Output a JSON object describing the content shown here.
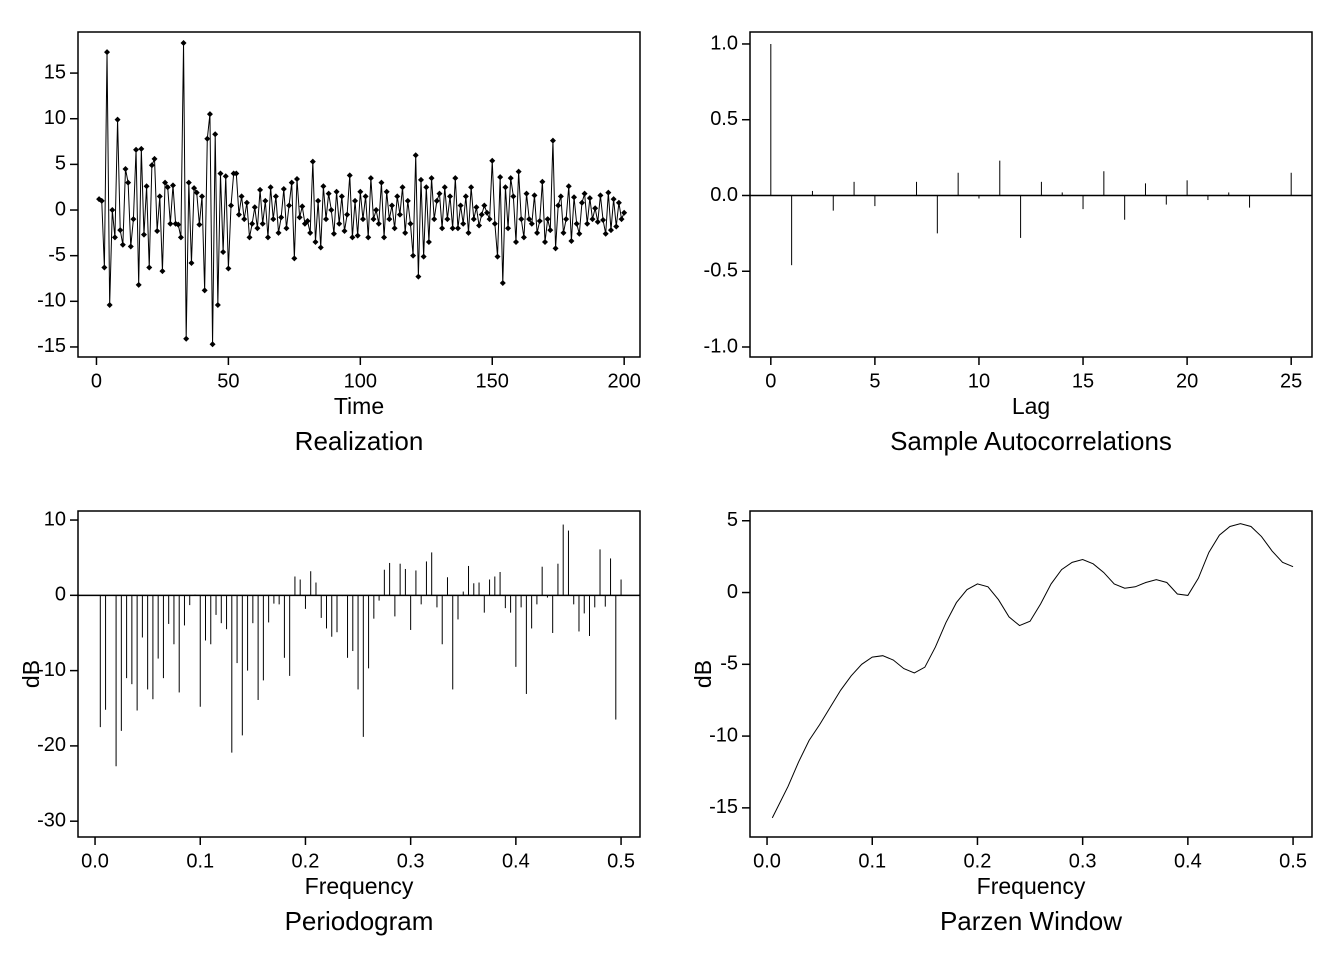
{
  "chart_data": [
    {
      "type": "line",
      "markers": true,
      "title": "Realization",
      "xlabel": "Time",
      "color": "#000000",
      "x": [
        1,
        2,
        3,
        4,
        5,
        6,
        7,
        8,
        9,
        10,
        11,
        12,
        13,
        14,
        15,
        16,
        17,
        18,
        19,
        20,
        21,
        22,
        23,
        24,
        25,
        26,
        27,
        28,
        29,
        30,
        31,
        32,
        33,
        34,
        35,
        36,
        37,
        38,
        39,
        40,
        41,
        42,
        43,
        44,
        45,
        46,
        47,
        48,
        49,
        50,
        51,
        52,
        53,
        54,
        55,
        56,
        57,
        58,
        59,
        60,
        61,
        62,
        63,
        64,
        65,
        66,
        67,
        68,
        69,
        70,
        71,
        72,
        73,
        74,
        75,
        76,
        77,
        78,
        79,
        80,
        81,
        82,
        83,
        84,
        85,
        86,
        87,
        88,
        89,
        90,
        91,
        92,
        93,
        94,
        95,
        96,
        97,
        98,
        99,
        100,
        101,
        102,
        103,
        104,
        105,
        106,
        107,
        108,
        109,
        110,
        111,
        112,
        113,
        114,
        115,
        116,
        117,
        118,
        119,
        120,
        121,
        122,
        123,
        124,
        125,
        126,
        127,
        128,
        129,
        130,
        131,
        132,
        133,
        134,
        135,
        136,
        137,
        138,
        139,
        140,
        141,
        142,
        143,
        144,
        145,
        146,
        147,
        148,
        149,
        150,
        151,
        152,
        153,
        154,
        155,
        156,
        157,
        158,
        159,
        160,
        161,
        162,
        163,
        164,
        165,
        166,
        167,
        168,
        169,
        170,
        171,
        172,
        173,
        174,
        175,
        176,
        177,
        178,
        179,
        180,
        181,
        182,
        183,
        184,
        185,
        186,
        187,
        188,
        189,
        190,
        191,
        192,
        193,
        194,
        195,
        196,
        197,
        198,
        199,
        200
      ],
      "values": [
        1.2,
        1,
        -6.3,
        17.3,
        -10.4,
        0,
        -3,
        9.9,
        -2.2,
        -3.8,
        4.5,
        3,
        -4,
        -1,
        6.6,
        -8.2,
        6.7,
        -2.7,
        2.6,
        -6.3,
        4.9,
        5.6,
        -2.3,
        1.5,
        -6.7,
        3,
        2.5,
        -1.5,
        2.7,
        -1.5,
        -1.6,
        -3,
        18.3,
        -14.1,
        3,
        -5.8,
        2.4,
        1.9,
        -1.6,
        1.5,
        -8.8,
        7.8,
        10.5,
        -14.7,
        8.3,
        -10.4,
        4,
        -4.6,
        3.7,
        -6.4,
        0.5,
        4,
        4,
        -0.5,
        1.5,
        -1,
        0.8,
        -3,
        -1.5,
        0.3,
        -2,
        2.2,
        -1.5,
        1,
        -3,
        2.5,
        -1,
        1.5,
        -2.5,
        -0.8,
        2.3,
        -2,
        0.5,
        3,
        -5.3,
        3.4,
        -0.8,
        0.4,
        -1.5,
        -1.2,
        -2.5,
        5.3,
        -3.5,
        1,
        -4.1,
        2.6,
        -1,
        1.8,
        0,
        -2.6,
        2,
        -1.5,
        1.5,
        -2.3,
        -0.5,
        3.8,
        -3,
        1,
        -2.8,
        2,
        -1,
        1.5,
        -3,
        3.5,
        -1,
        0,
        -1.5,
        3,
        -3,
        2,
        -1,
        0.5,
        -2,
        1.5,
        -0.5,
        2.5,
        -2.5,
        1,
        -1.5,
        -5,
        6,
        -7.3,
        3.3,
        -5.1,
        2.5,
        -3.5,
        3.5,
        -1,
        1,
        1.8,
        -2,
        2.5,
        -1,
        1.5,
        -2,
        3.5,
        -2,
        0.5,
        -1.5,
        1.5,
        -2.5,
        2.5,
        -1,
        0.3,
        -1.7,
        -0.5,
        0.5,
        -0.3,
        -1,
        5.4,
        -1.5,
        -5.1,
        3.6,
        -8,
        2.5,
        -2,
        3.5,
        1.5,
        -3.5,
        4.2,
        -1,
        -3,
        1.8,
        -1,
        -1.5,
        1.6,
        -2.5,
        -1.2,
        3.1,
        -3.5,
        -1,
        -2.2,
        7.6,
        -4.2,
        0.5,
        1.5,
        -2.5,
        -1,
        2.6,
        -3.4,
        1.4,
        -1.5,
        -2.6,
        0.8,
        1.8,
        -1.5,
        1.3,
        -1,
        0.2,
        -1.3,
        1.6,
        -1.1,
        -2.6,
        1.9,
        -2.2,
        1.2,
        -1.8,
        0.8,
        -1,
        -0.3
      ],
      "xlim": [
        -7,
        206
      ],
      "ylim": [
        -16.1,
        19.5
      ],
      "xticks": [
        0,
        50,
        100,
        150,
        200
      ],
      "yticks": [
        -15,
        -10,
        -5,
        0,
        5,
        10,
        15
      ]
    },
    {
      "type": "stem",
      "title": "Sample Autocorrelations",
      "xlabel": "Lag",
      "color": "#000000",
      "x": [
        0,
        1,
        2,
        3,
        4,
        5,
        6,
        7,
        8,
        9,
        10,
        11,
        12,
        13,
        14,
        15,
        16,
        17,
        18,
        19,
        20,
        21,
        22,
        23,
        24,
        25
      ],
      "values": [
        1,
        -0.46,
        0.03,
        -0.1,
        0.09,
        -0.07,
        0,
        0.09,
        -0.25,
        0.15,
        -0.02,
        0.23,
        -0.28,
        0.09,
        0.02,
        -0.09,
        0.16,
        -0.16,
        0.08,
        -0.06,
        0.1,
        -0.03,
        0.02,
        -0.08,
        0,
        0.15
      ],
      "xlim": [
        -1,
        26
      ],
      "ylim": [
        -1.066,
        1.079
      ],
      "xticks": [
        0,
        5,
        10,
        15,
        20,
        25
      ],
      "yticks": [
        {
          "value": -1,
          "label": "-1.0"
        },
        {
          "value": -0.5,
          "label": "-0.5"
        },
        {
          "value": 0,
          "label": "0.0"
        },
        {
          "value": 0.5,
          "label": "0.5"
        },
        {
          "value": 1,
          "label": "1.0"
        }
      ]
    },
    {
      "type": "stem",
      "title": "Periodogram",
      "xlabel": "Frequency",
      "ylabel": "dB",
      "color": "#000000",
      "x": [
        0.005,
        0.01,
        0.02,
        0.025,
        0.03,
        0.035,
        0.04,
        0.045,
        0.05,
        0.055,
        0.06,
        0.065,
        0.07,
        0.075,
        0.08,
        0.085,
        0.09,
        0.095,
        0.1,
        0.105,
        0.11,
        0.115,
        0.12,
        0.125,
        0.13,
        0.135,
        0.14,
        0.145,
        0.15,
        0.155,
        0.16,
        0.165,
        0.17,
        0.175,
        0.18,
        0.185,
        0.19,
        0.195,
        0.2,
        0.205,
        0.21,
        0.215,
        0.22,
        0.225,
        0.23,
        0.235,
        0.24,
        0.245,
        0.25,
        0.255,
        0.26,
        0.265,
        0.27,
        0.275,
        0.28,
        0.285,
        0.29,
        0.295,
        0.3,
        0.305,
        0.31,
        0.315,
        0.32,
        0.325,
        0.33,
        0.335,
        0.34,
        0.345,
        0.35,
        0.355,
        0.36,
        0.365,
        0.37,
        0.375,
        0.38,
        0.385,
        0.39,
        0.395,
        0.4,
        0.405,
        0.41,
        0.415,
        0.42,
        0.425,
        0.43,
        0.435,
        0.44,
        0.445,
        0.45,
        0.455,
        0.46,
        0.465,
        0.47,
        0.475,
        0.48,
        0.485,
        0.49,
        0.495,
        0.5
      ],
      "values": [
        -17.5,
        -15.2,
        -22.7,
        -18,
        -11,
        -11.8,
        -15.3,
        -5.6,
        -12.5,
        -13.8,
        -8.4,
        -11,
        -3.8,
        -6.5,
        -12.9,
        -4,
        -1.3,
        0.1,
        -14.8,
        -6,
        -6.5,
        -2.6,
        -3.7,
        -4.5,
        -20.9,
        -9,
        -18.6,
        -10,
        -3.7,
        -13.9,
        -11.3,
        -3.6,
        -1.1,
        -1.2,
        -8.3,
        -10.7,
        2.5,
        2.1,
        -1.8,
        3.2,
        1.7,
        -3,
        -4.4,
        -5.5,
        -4.9,
        -0.1,
        -8.3,
        -7.4,
        -12.5,
        -18.8,
        -9.7,
        -3.1,
        -0.7,
        3.4,
        4.3,
        -2.8,
        4.2,
        3.5,
        -4.6,
        3.3,
        -1.2,
        4.5,
        5.7,
        -1.6,
        -6.5,
        2.4,
        -12.5,
        -3.2,
        0.5,
        3.9,
        1.6,
        1.7,
        -2.3,
        2.1,
        2.5,
        3.1,
        -1.7,
        -2.3,
        -9.5,
        -1.6,
        -13.1,
        -4.4,
        -1.2,
        3.8,
        -0.3,
        -5,
        4.2,
        9.4,
        8.6,
        -1.2,
        -4.8,
        -2.4,
        -5.4,
        -1.6,
        6.1,
        -1.5,
        4.9,
        -16.5,
        2.1
      ],
      "xlim": [
        -0.0162,
        0.518
      ],
      "ylim": [
        -32.1,
        11.2
      ],
      "xticks": [
        {
          "value": 0,
          "label": "0.0"
        },
        0.1,
        0.2,
        0.3,
        0.4,
        0.5
      ],
      "yticks": [
        -30,
        -20,
        -10,
        0,
        10
      ]
    },
    {
      "type": "line",
      "title": "Parzen Window",
      "xlabel": "Frequency",
      "ylabel": "dB",
      "color": "#000000",
      "x": [
        0.005,
        0.02,
        0.03,
        0.04,
        0.05,
        0.06,
        0.07,
        0.08,
        0.09,
        0.1,
        0.11,
        0.12,
        0.13,
        0.14,
        0.15,
        0.16,
        0.17,
        0.18,
        0.19,
        0.2,
        0.21,
        0.22,
        0.23,
        0.24,
        0.25,
        0.26,
        0.27,
        0.28,
        0.29,
        0.3,
        0.31,
        0.32,
        0.33,
        0.34,
        0.35,
        0.36,
        0.37,
        0.38,
        0.39,
        0.4,
        0.41,
        0.42,
        0.43,
        0.44,
        0.45,
        0.46,
        0.47,
        0.48,
        0.49,
        0.5
      ],
      "values": [
        -15.7,
        -13.5,
        -11.8,
        -10.3,
        -9.2,
        -8,
        -6.8,
        -5.8,
        -5,
        -4.5,
        -4.4,
        -4.7,
        -5.3,
        -5.6,
        -5.2,
        -3.8,
        -2.1,
        -0.7,
        0.2,
        0.6,
        0.4,
        -0.5,
        -1.7,
        -2.3,
        -2,
        -0.8,
        0.6,
        1.6,
        2.1,
        2.3,
        2,
        1.4,
        0.6,
        0.3,
        0.4,
        0.7,
        0.9,
        0.7,
        -0.1,
        -0.2,
        1,
        2.8,
        4,
        4.6,
        4.8,
        4.6,
        3.9,
        2.9,
        2.1,
        1.8
      ],
      "xlim": [
        -0.0162,
        0.518
      ],
      "ylim": [
        -17.03,
        5.68
      ],
      "xticks": [
        {
          "value": 0,
          "label": "0.0"
        },
        0.1,
        0.2,
        0.3,
        0.4,
        0.5
      ],
      "yticks": [
        -15,
        -10,
        -5,
        0,
        5
      ]
    }
  ]
}
